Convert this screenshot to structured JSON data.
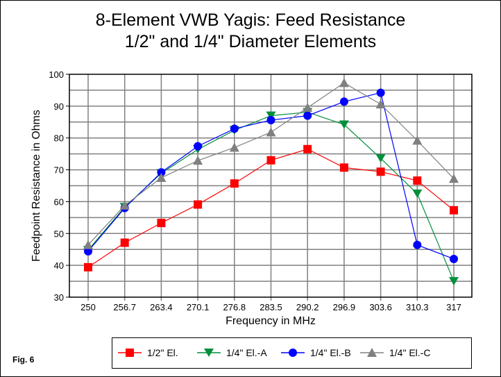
{
  "figure_label": "Fig. 6",
  "chart_data": {
    "type": "line",
    "title": [
      "8-Element VWB Yagis:  Feed Resistance",
      "1/2\" and 1/4\" Diameter Elements"
    ],
    "xlabel": "Frequency in MHz",
    "ylabel": "Feedpoint Resistance in Ohms",
    "categories": [
      "250",
      "256.7",
      "263.4",
      "270.1",
      "276.8",
      "283.5",
      "290.2",
      "296.9",
      "303.6",
      "310.3",
      "317"
    ],
    "ylim": [
      30,
      100
    ],
    "yticks": [
      30,
      40,
      50,
      60,
      70,
      80,
      90,
      100
    ],
    "grid": true,
    "legend_position": "bottom",
    "series": [
      {
        "name": "1/2\" El.",
        "color": "#ff0000",
        "marker": "square",
        "values": [
          39.4,
          47.1,
          53.3,
          59.1,
          65.7,
          73.0,
          76.5,
          70.7,
          69.4,
          66.6,
          57.3
        ]
      },
      {
        "name": "1/4\" El.-A",
        "color": "#008f3c",
        "marker": "triangle-down",
        "values": [
          44.8,
          58.3,
          68.9,
          76.4,
          82.4,
          87.0,
          88.1,
          84.2,
          73.6,
          62.5,
          35.0
        ]
      },
      {
        "name": "1/4\" El.-B",
        "color": "#0000ff",
        "marker": "circle",
        "values": [
          44.4,
          58.0,
          69.2,
          77.4,
          82.9,
          85.6,
          87.0,
          91.4,
          94.2,
          46.4,
          42.0
        ]
      },
      {
        "name": "1/4\" El.-C",
        "color": "#808080",
        "marker": "triangle-up",
        "values": [
          46.4,
          58.8,
          67.5,
          72.9,
          77.0,
          81.8,
          89.5,
          97.3,
          90.6,
          79.2,
          67.2
        ]
      }
    ]
  }
}
